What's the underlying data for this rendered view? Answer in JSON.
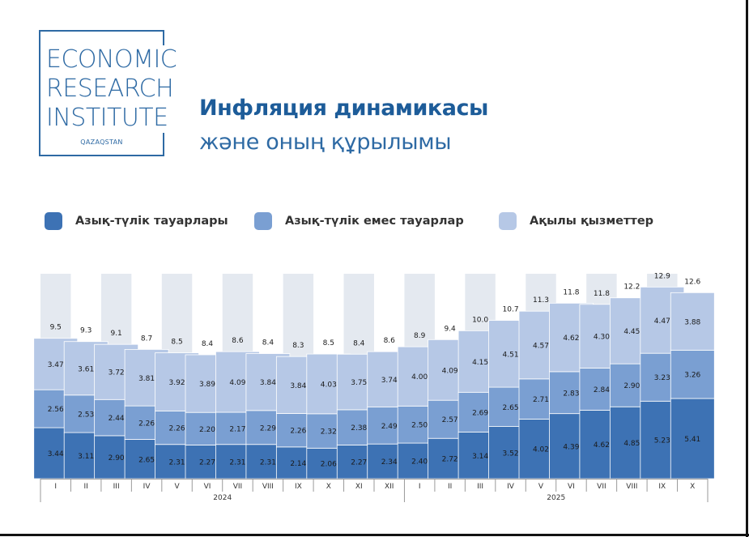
{
  "logo": {
    "lines": [
      "ECONOMIC",
      "RESEARCH",
      "INSTITUTE"
    ],
    "sub": "QAZAQSTAN",
    "color": "#2e6aa4"
  },
  "title": {
    "line1": "Инфляция динамикасы",
    "line2": "және оның құрылымы"
  },
  "colors": {
    "food": "#3d72b4",
    "nonfood": "#7a9fd2",
    "services": "#b6c8e6",
    "column_band": "#e4e9f0",
    "title_primary": "#1d5c99"
  },
  "legend": [
    {
      "label": "Азық-түлік тауарлары",
      "series": "food"
    },
    {
      "label": "Азық-түлік емес тауарлар",
      "series": "nonfood"
    },
    {
      "label": "Ақылы қызметтер",
      "series": "services"
    }
  ],
  "chart_data": {
    "type": "bar",
    "stacked": true,
    "title": "Инфляция динамикасы және оның құрылымы",
    "categories": [
      "I",
      "II",
      "III",
      "IV",
      "V",
      "VI",
      "VII",
      "VIII",
      "IX",
      "X",
      "XI",
      "XII",
      "I",
      "II",
      "III",
      "IV",
      "V",
      "VI",
      "VII",
      "VIII",
      "IX",
      "X"
    ],
    "groups": [
      {
        "label": "2024",
        "from": 0,
        "to": 11
      },
      {
        "label": "2025",
        "from": 12,
        "to": 21
      }
    ],
    "series": [
      {
        "name": "Азық-түлік тауарлары",
        "key": "food",
        "values": [
          "3.44",
          "3.11",
          "2.90",
          "2.65",
          "2.31",
          "2.27",
          "2.31",
          "2.31",
          "2.14",
          "2.06",
          "2.27",
          "2.34",
          "2.40",
          "2.72",
          "3.14",
          "3.52",
          "4.02",
          "4.39",
          "4.62",
          "4.85",
          "5.23",
          "5.41"
        ]
      },
      {
        "name": "Азық-түлік емес тауарлар",
        "key": "nonfood",
        "values": [
          "2.56",
          "2.53",
          "2.44",
          "2.26",
          "2.26",
          "2.20",
          "2.17",
          "2.29",
          "2.26",
          "2.32",
          "2.38",
          "2.49",
          "2.50",
          "2.57",
          "2.69",
          "2.65",
          "2.71",
          "2.83",
          "2.84",
          "2.90",
          "3.23",
          "3.26"
        ]
      },
      {
        "name": "Ақылы қызметтер",
        "key": "services",
        "values": [
          "3.47",
          "3.61",
          "3.72",
          "3.81",
          "3.92",
          "3.89",
          "4.09",
          "3.84",
          "3.84",
          "4.03",
          "3.75",
          "3.74",
          "4.00",
          "4.09",
          "4.15",
          "4.51",
          "4.57",
          "4.62",
          "4.30",
          "4.45",
          "4.47",
          "3.88"
        ]
      }
    ],
    "totals": [
      "9.5",
      "9.3",
      "9.1",
      "8.7",
      "8.5",
      "8.4",
      "8.6",
      "8.4",
      "8.3",
      "8.5",
      "8.4",
      "8.6",
      "8.9",
      "9.4",
      "10.0",
      "10.7",
      "11.3",
      "11.8",
      "11.8",
      "12.2",
      "12.9",
      "12.6"
    ],
    "ylim": [
      0,
      14
    ],
    "xlabel": "",
    "ylabel": "",
    "legend_position": "top"
  }
}
